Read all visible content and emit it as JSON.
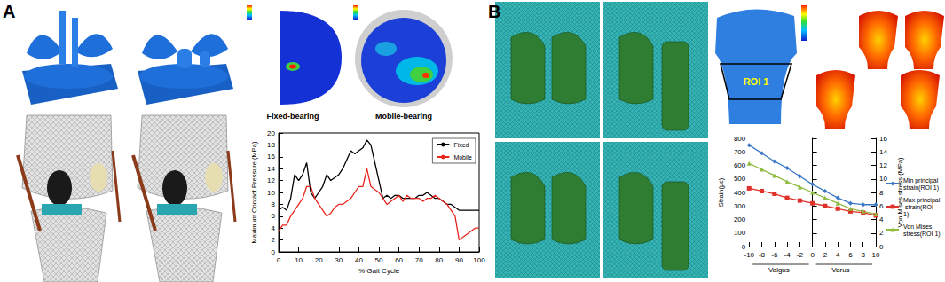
{
  "figure": {
    "panel_labels": [
      "A",
      "B"
    ],
    "contact_maps": [
      "Fixed-bearing",
      "Mobile-bearing"
    ],
    "region_label": "ROI 1"
  },
  "chart_data": [
    {
      "type": "line",
      "xlabel": "% Gait Cycle",
      "ylabel": "Maximum Contact Pressure (MPa)",
      "x": [
        0,
        2,
        4,
        6,
        8,
        10,
        12,
        14,
        16,
        18,
        20,
        22,
        24,
        26,
        28,
        30,
        32,
        34,
        36,
        38,
        40,
        42,
        44,
        46,
        48,
        50,
        52,
        54,
        56,
        58,
        60,
        62,
        64,
        66,
        68,
        70,
        72,
        74,
        76,
        78,
        80,
        82,
        84,
        86,
        88,
        90,
        92,
        94,
        96,
        98,
        100
      ],
      "series": [
        {
          "name": "Fixed",
          "color": "#000000",
          "values": [
            7,
            7.5,
            7,
            9,
            13,
            12,
            13,
            15,
            10,
            9,
            10,
            11,
            13,
            12,
            12.5,
            13,
            14,
            15.5,
            17,
            16.5,
            17,
            17.5,
            18.8,
            18,
            15,
            12,
            9,
            9.5,
            9,
            9.5,
            9.5,
            9,
            9,
            9,
            9,
            9.5,
            9.5,
            10,
            9.5,
            9,
            9,
            8.5,
            8,
            8,
            7.5,
            7,
            7,
            7,
            7,
            7,
            7
          ]
        },
        {
          "name": "Mobile",
          "color": "#e8251c",
          "values": [
            3.5,
            4.5,
            4.5,
            6,
            7,
            8,
            9,
            11,
            11,
            9,
            8,
            7,
            6,
            6.5,
            7.5,
            8,
            8,
            8.5,
            9,
            10,
            11,
            11,
            14,
            11,
            10.5,
            10,
            9,
            8,
            8.5,
            9,
            9.5,
            8.5,
            9.5,
            9,
            9,
            9,
            8.5,
            9,
            9,
            9.5,
            9,
            8.5,
            8,
            7,
            6,
            2,
            2.5,
            3,
            3.5,
            4,
            4
          ]
        }
      ],
      "xlim": [
        0,
        100
      ],
      "xticks": [
        0,
        10,
        20,
        30,
        40,
        50,
        60,
        70,
        80,
        90,
        100
      ],
      "ylim": [
        0,
        20
      ],
      "yticks": [
        0,
        2,
        4,
        6,
        8,
        10,
        12,
        14,
        16,
        18,
        20
      ],
      "legend": "upper right",
      "grid": false
    },
    {
      "type": "line",
      "ylabel": "Strain(με)",
      "y2label": "Von Mises stress (MPa)",
      "annotations": [
        "Valgus",
        "Varus"
      ],
      "x": [
        -10,
        -8,
        -6,
        -4,
        -2,
        0,
        2,
        4,
        6,
        8,
        10
      ],
      "series": [
        {
          "name": "Min principal strain(ROI 1)",
          "color": "#3a78c6",
          "marker": "diamond",
          "values": [
            750,
            690,
            630,
            580,
            520,
            460,
            410,
            360,
            320,
            310,
            310
          ]
        },
        {
          "name": "Max principal strain(ROI 1)",
          "color": "#e0302a",
          "marker": "square",
          "values": [
            430,
            410,
            390,
            360,
            340,
            320,
            300,
            280,
            260,
            250,
            230
          ]
        },
        {
          "name": "Von Mises stress(ROI 1)",
          "color": "#8fbc3f",
          "marker": "triangle",
          "axis": "y2",
          "values": [
            12.3,
            11.4,
            10.5,
            9.6,
            8.8,
            8,
            7.2,
            6.4,
            5.6,
            5.2,
            4.8
          ]
        }
      ],
      "xlim": [
        -10,
        10
      ],
      "xticks": [
        -10,
        -8,
        -6,
        -4,
        -2,
        0,
        2,
        4,
        6,
        8,
        10
      ],
      "ylim": [
        0,
        800
      ],
      "yticks": [
        0,
        100,
        200,
        300,
        400,
        500,
        600,
        700,
        800
      ],
      "y2lim": [
        0,
        16
      ],
      "y2ticks": [
        0,
        2,
        4,
        6,
        8,
        10,
        12,
        14,
        16
      ],
      "legend": "right",
      "grid": false
    }
  ]
}
